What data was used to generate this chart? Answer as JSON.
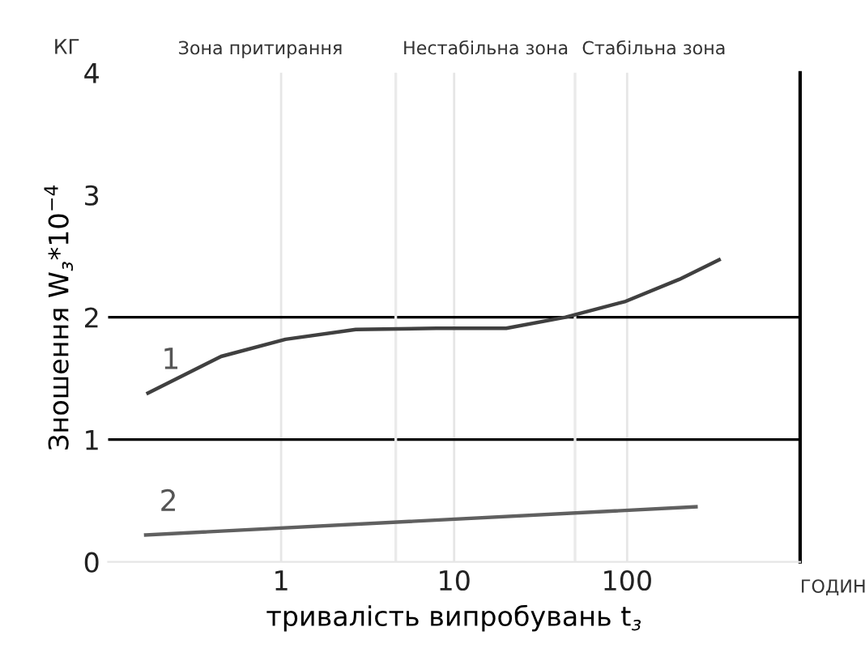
{
  "chart_data": {
    "type": "line",
    "xlabel": "тривалість випробувань t$_{з}$",
    "ylabel": "Зношення W$_{з}$*10$^{−4}$",
    "annotations": [
      "Зона притирання",
      "КГ",
      "ГОДИН"
    ],
    "log": "x",
    "xlim": [
      0.1,
      1000
    ],
    "xticks": [
      1,
      10,
      100
    ],
    "ylim": [
      0,
      4
    ],
    "yticks": [
      0,
      1,
      2,
      3,
      4
    ],
    "grid": "x",
    "ref_lines": [
      {
        "axis": "y",
        "value": 1,
        "color": "#000000"
      },
      {
        "axis": "y",
        "value": 2,
        "color": "#000000"
      },
      {
        "axis": "x",
        "value": 4.6,
        "label": "Нестабільна зона",
        "color": "#eaeaea"
      },
      {
        "axis": "x",
        "value": 50,
        "label": "Стабільна зона",
        "color": "#eaeaea"
      }
    ],
    "series": [
      {
        "name": "1",
        "color": "#404040",
        "x": [
          0.17,
          0.45,
          1.06,
          2.7,
          7.9,
          20,
          44,
          98,
          200,
          340
        ],
        "values": [
          1.38,
          1.68,
          1.82,
          1.9,
          1.91,
          1.91,
          2.0,
          2.13,
          2.31,
          2.47
        ]
      },
      {
        "name": "2",
        "color": "#606060",
        "x": [
          0.165,
          250
        ],
        "values": [
          0.22,
          0.45
        ]
      }
    ]
  }
}
